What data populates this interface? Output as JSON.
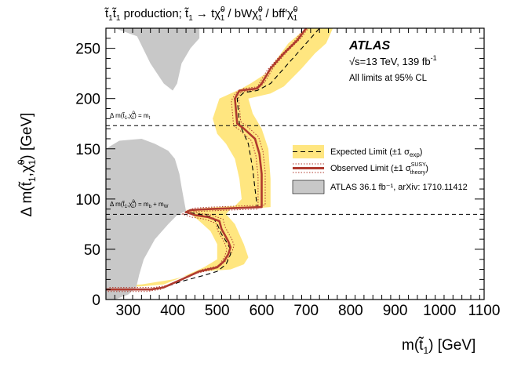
{
  "chart_data": {
    "type": "exclusion-contour",
    "title": "t̃₁t̃₁ production; t̃₁ → tχ̃₁⁰ / bWχ̃₁⁰ / bff′χ̃₁⁰",
    "xlabel": "m(t̃₁) [GeV]",
    "ylabel": "Δ m(t̃₁,χ̃₁⁰) [GeV]",
    "xlim": [
      250,
      1100
    ],
    "ylim": [
      0,
      270
    ],
    "x_ticks": [
      300,
      400,
      500,
      600,
      700,
      800,
      900,
      1000,
      1100
    ],
    "y_ticks": [
      0,
      50,
      100,
      150,
      200,
      250
    ],
    "experiment": "ATLAS",
    "energy_lumi": "√s=13 TeV, 139 fb⁻¹",
    "cl_note": "All limits at 95% CL",
    "legend": {
      "expected": "Expected Limit (±1 σexp)",
      "observed": "Observed Limit (±1 σtheory SUSY)",
      "previous": "ATLAS 36.1 fb⁻¹, arXiv: 1710.11412"
    },
    "reference_lines": [
      {
        "label": "Δ m(t̃₁,χ̃₁⁰) = mt",
        "y": 173
      },
      {
        "label": "Δ m(t̃₁,χ̃₁⁰) = mb + mW",
        "y": 84.8
      }
    ],
    "series": [
      {
        "name": "observed",
        "points": [
          [
            250,
            10
          ],
          [
            300,
            10
          ],
          [
            350,
            10
          ],
          [
            380,
            12
          ],
          [
            420,
            20
          ],
          [
            460,
            28
          ],
          [
            500,
            32
          ],
          [
            515,
            38
          ],
          [
            525,
            45
          ],
          [
            530,
            52
          ],
          [
            525,
            58
          ],
          [
            520,
            62
          ],
          [
            510,
            70
          ],
          [
            505,
            78
          ],
          [
            480,
            82
          ],
          [
            450,
            84
          ],
          [
            430,
            87
          ],
          [
            440,
            89
          ],
          [
            480,
            90
          ],
          [
            540,
            91
          ],
          [
            600,
            92
          ],
          [
            600,
            105
          ],
          [
            600,
            125
          ],
          [
            595,
            145
          ],
          [
            585,
            160
          ],
          [
            560,
            170
          ],
          [
            545,
            175
          ],
          [
            540,
            200
          ],
          [
            550,
            208
          ],
          [
            590,
            210
          ],
          [
            600,
            215
          ],
          [
            620,
            230
          ],
          [
            650,
            245
          ],
          [
            680,
            258
          ],
          [
            700,
            270
          ]
        ]
      },
      {
        "name": "expected",
        "points": [
          [
            250,
            10
          ],
          [
            300,
            10
          ],
          [
            350,
            10
          ],
          [
            380,
            12
          ],
          [
            420,
            18
          ],
          [
            470,
            24
          ],
          [
            500,
            28
          ],
          [
            520,
            35
          ],
          [
            530,
            45
          ],
          [
            530,
            50
          ],
          [
            520,
            58
          ],
          [
            510,
            65
          ],
          [
            500,
            75
          ],
          [
            490,
            82
          ],
          [
            460,
            85
          ],
          [
            430,
            87
          ],
          [
            440,
            89
          ],
          [
            480,
            90
          ],
          [
            540,
            91
          ],
          [
            590,
            92
          ],
          [
            585,
            110
          ],
          [
            580,
            130
          ],
          [
            570,
            155
          ],
          [
            550,
            175
          ],
          [
            545,
            200
          ],
          [
            560,
            206
          ],
          [
            590,
            208
          ],
          [
            620,
            215
          ],
          [
            660,
            235
          ],
          [
            700,
            255
          ],
          [
            730,
            270
          ]
        ]
      }
    ],
    "expected_band": {
      "upper": [
        [
          250,
          13
        ],
        [
          330,
          15
        ],
        [
          400,
          20
        ],
        [
          470,
          28
        ],
        [
          530,
          30
        ],
        [
          560,
          35
        ],
        [
          570,
          42
        ],
        [
          560,
          55
        ],
        [
          550,
          65
        ],
        [
          540,
          75
        ],
        [
          520,
          85
        ],
        [
          530,
          90
        ],
        [
          590,
          91
        ],
        [
          620,
          92
        ],
        [
          620,
          120
        ],
        [
          615,
          150
        ],
        [
          600,
          170
        ],
        [
          580,
          185
        ],
        [
          570,
          200
        ],
        [
          620,
          205
        ],
        [
          650,
          212
        ],
        [
          690,
          230
        ],
        [
          720,
          245
        ],
        [
          745,
          255
        ],
        [
          760,
          270
        ]
      ],
      "lower": [
        [
          700,
          270
        ],
        [
          660,
          255
        ],
        [
          610,
          225
        ],
        [
          575,
          215
        ],
        [
          555,
          210
        ],
        [
          505,
          200
        ],
        [
          490,
          180
        ],
        [
          500,
          165
        ],
        [
          520,
          155
        ],
        [
          540,
          140
        ],
        [
          550,
          120
        ],
        [
          555,
          100
        ],
        [
          540,
          93
        ],
        [
          470,
          91
        ],
        [
          430,
          89
        ],
        [
          460,
          78
        ],
        [
          485,
          68
        ],
        [
          500,
          55
        ],
        [
          500,
          40
        ],
        [
          470,
          32
        ],
        [
          420,
          22
        ],
        [
          380,
          15
        ],
        [
          330,
          13
        ],
        [
          250,
          12
        ]
      ]
    },
    "previous_regions": [
      {
        "label": "ATLAS 36.1 fb⁻¹ (upper)",
        "points": [
          [
            270,
            270
          ],
          [
            320,
            262
          ],
          [
            350,
            235
          ],
          [
            380,
            215
          ],
          [
            400,
            208
          ],
          [
            410,
            215
          ],
          [
            420,
            235
          ],
          [
            440,
            250
          ],
          [
            460,
            260
          ],
          [
            460,
            270
          ]
        ]
      },
      {
        "label": "ATLAS 36.1 fb⁻¹ (lower)",
        "points": [
          [
            250,
            0
          ],
          [
            250,
            150
          ],
          [
            280,
            158
          ],
          [
            330,
            160
          ],
          [
            360,
            155
          ],
          [
            390,
            148
          ],
          [
            405,
            140
          ],
          [
            415,
            125
          ],
          [
            420,
            112
          ],
          [
            425,
            100
          ],
          [
            430,
            88
          ],
          [
            410,
            84
          ],
          [
            390,
            75
          ],
          [
            360,
            60
          ],
          [
            335,
            40
          ],
          [
            325,
            25
          ],
          [
            318,
            12
          ],
          [
            300,
            5
          ],
          [
            270,
            0
          ]
        ]
      }
    ],
    "colors": {
      "band": "#ffe680",
      "observed": "#b03a2e",
      "expected": "#000000",
      "previous": "#c8c8c8"
    }
  },
  "annotations": {
    "atlas": "ATLAS",
    "energy_prefix": "√s=13 TeV, 139 fb",
    "energy_exp": "-1",
    "cl": "All limits at 95% CL",
    "title_parts": {
      "pair": "t̃₁t̃₁ production; t̃₁ → tχ̃",
      "exp0": "0",
      "sub1": "1",
      "rest": " / bWχ̃",
      "rest2": " / bff′χ̃"
    }
  }
}
